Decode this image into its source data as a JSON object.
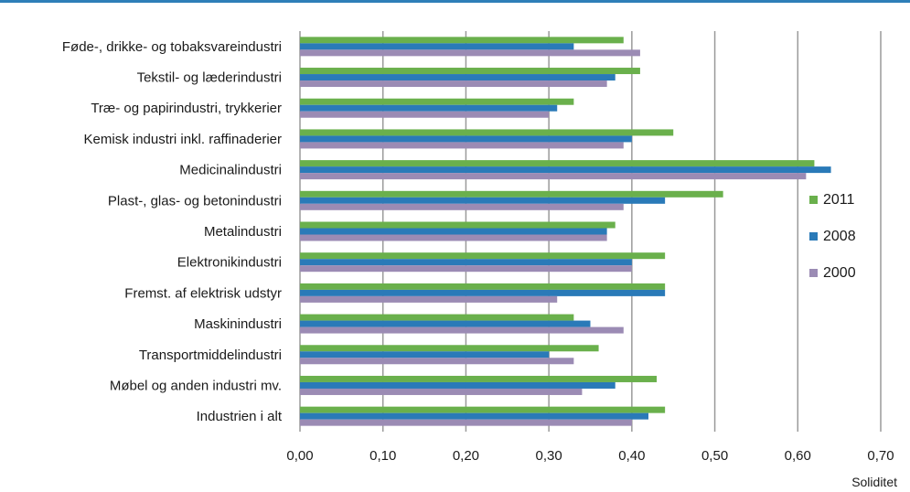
{
  "chart_data": {
    "type": "bar",
    "orientation": "horizontal",
    "categories": [
      "Føde-, drikke- og tobaksvareindustri",
      "Tekstil- og læderindustri",
      "Træ- og papirindustri, trykkerier",
      "Kemisk industri inkl. raffinaderier",
      "Medicinalindustri",
      "Plast-, glas- og betonindustri",
      "Metalindustri",
      "Elektronikindustri",
      "Fremst. af elektrisk udstyr",
      "Maskinindustri",
      "Transportmiddelindustri",
      "Møbel og anden industri mv.",
      "Industrien i alt"
    ],
    "series": [
      {
        "name": "2011",
        "color": "#6ab04c",
        "values": [
          0.39,
          0.41,
          0.33,
          0.45,
          0.62,
          0.51,
          0.38,
          0.44,
          0.44,
          0.33,
          0.36,
          0.43,
          0.44
        ]
      },
      {
        "name": "2008",
        "color": "#2a7ab8",
        "values": [
          0.33,
          0.38,
          0.31,
          0.4,
          0.64,
          0.44,
          0.37,
          0.4,
          0.44,
          0.35,
          0.3,
          0.38,
          0.42
        ]
      },
      {
        "name": "2000",
        "color": "#9b8bb4",
        "values": [
          0.41,
          0.37,
          0.3,
          0.39,
          0.61,
          0.39,
          0.37,
          0.4,
          0.31,
          0.39,
          0.33,
          0.34,
          0.4
        ]
      }
    ],
    "xlim": [
      0,
      0.7
    ],
    "xticks": [
      "0,00",
      "0,10",
      "0,20",
      "0,30",
      "0,40",
      "0,50",
      "0,60",
      "0,70"
    ],
    "xlabel": "Soliditet",
    "title": "",
    "grid": true,
    "legend_position": "right"
  }
}
